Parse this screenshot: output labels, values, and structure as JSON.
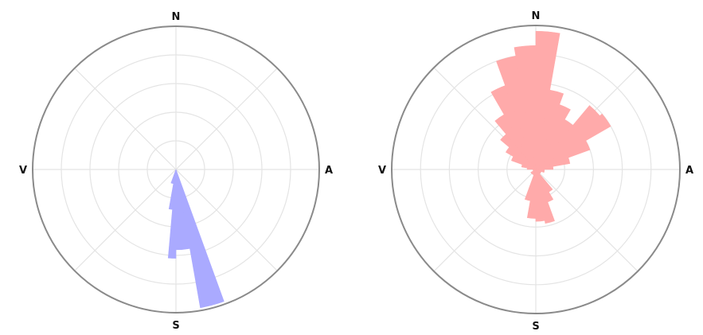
{
  "chart_data": [
    {
      "type": "polar-bar",
      "direction_labels": {
        "north": "N",
        "east": "A",
        "south": "S",
        "west": "V"
      },
      "rmax": 5,
      "rings": [
        1,
        2,
        3,
        4,
        5
      ],
      "spokes_deg": [
        0,
        45,
        90,
        135,
        180,
        225,
        270,
        315
      ],
      "grid": true,
      "color": "#aaaaff",
      "sectors": [
        {
          "start": 160,
          "end": 170,
          "r": 4.9
        },
        {
          "start": 170,
          "end": 180,
          "r": 2.8
        },
        {
          "start": 180,
          "end": 185,
          "r": 3.1
        },
        {
          "start": 185,
          "end": 190,
          "r": 1.4
        },
        {
          "start": 190,
          "end": 200,
          "r": 0.5
        }
      ]
    },
    {
      "type": "polar-bar",
      "direction_labels": {
        "north": "N",
        "east": "A",
        "south": "S",
        "west": "V"
      },
      "rmax": 5,
      "rings": [
        1,
        2,
        3,
        4,
        5
      ],
      "spokes_deg": [
        0,
        45,
        90,
        135,
        180,
        225,
        270,
        315
      ],
      "grid": true,
      "color": "#ffaaaa",
      "sectors": [
        {
          "start": 0,
          "end": 10,
          "r": 4.8
        },
        {
          "start": 10,
          "end": 20,
          "r": 2.8
        },
        {
          "start": 20,
          "end": 30,
          "r": 2.4
        },
        {
          "start": 30,
          "end": 40,
          "r": 2.0
        },
        {
          "start": 40,
          "end": 50,
          "r": 2.9
        },
        {
          "start": 50,
          "end": 60,
          "r": 3.0
        },
        {
          "start": 60,
          "end": 70,
          "r": 2.0
        },
        {
          "start": 70,
          "end": 80,
          "r": 1.2
        },
        {
          "start": 80,
          "end": 90,
          "r": 0.6
        },
        {
          "start": 90,
          "end": 110,
          "r": 0.3
        },
        {
          "start": 110,
          "end": 140,
          "r": 0.2
        },
        {
          "start": 140,
          "end": 150,
          "r": 0.9
        },
        {
          "start": 150,
          "end": 160,
          "r": 1.2
        },
        {
          "start": 160,
          "end": 170,
          "r": 1.9
        },
        {
          "start": 170,
          "end": 180,
          "r": 1.8
        },
        {
          "start": 180,
          "end": 190,
          "r": 1.7
        },
        {
          "start": 190,
          "end": 200,
          "r": 1.1
        },
        {
          "start": 200,
          "end": 240,
          "r": 0.2
        },
        {
          "start": 240,
          "end": 270,
          "r": 0.1
        },
        {
          "start": 270,
          "end": 280,
          "r": 0.3
        },
        {
          "start": 280,
          "end": 290,
          "r": 0.5
        },
        {
          "start": 290,
          "end": 300,
          "r": 0.9
        },
        {
          "start": 300,
          "end": 310,
          "r": 1.2
        },
        {
          "start": 310,
          "end": 320,
          "r": 1.6
        },
        {
          "start": 320,
          "end": 330,
          "r": 2.2
        },
        {
          "start": 330,
          "end": 340,
          "r": 3.1
        },
        {
          "start": 340,
          "end": 350,
          "r": 4.0
        },
        {
          "start": 350,
          "end": 360,
          "r": 4.3
        }
      ]
    }
  ]
}
